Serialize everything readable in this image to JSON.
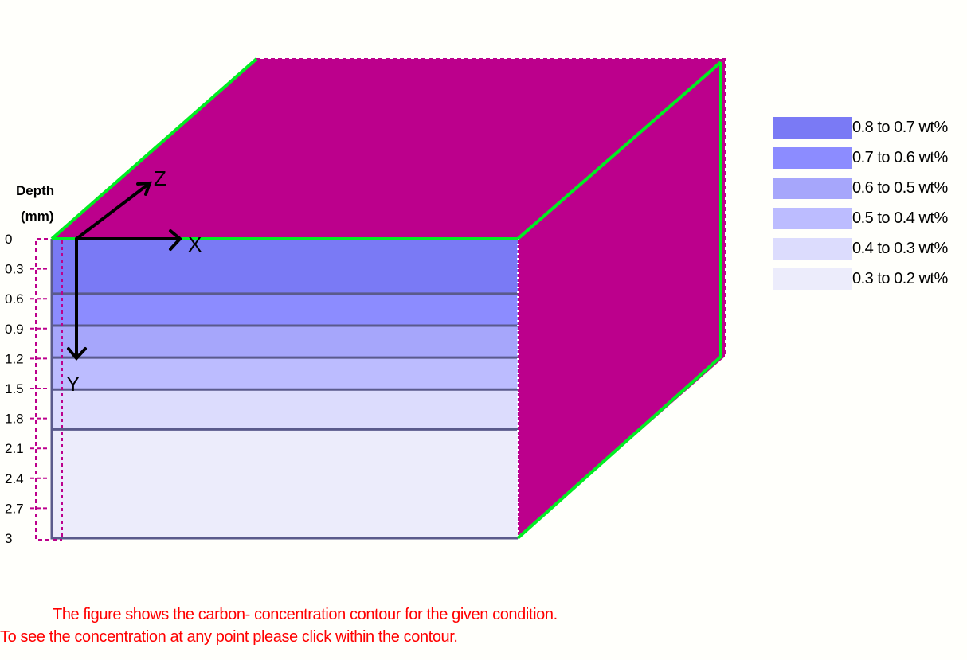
{
  "depth_axis": {
    "title_line1": "Depth",
    "title_line2": "(mm)",
    "ticks": [
      "0",
      "0.3",
      "0.6",
      "0.9",
      "1.2",
      "1.5",
      "1.8",
      "2.1",
      "2.4",
      "2.7",
      "3"
    ],
    "range": [
      0,
      3
    ]
  },
  "axes": {
    "x": "X",
    "y": "Y",
    "z": "Z"
  },
  "colors": {
    "block": "#bc008c",
    "edge": "#00ee22",
    "layer_line": "#5a5a8c",
    "guide": "#bc008c"
  },
  "layers": [
    {
      "label": "0.8 to 0.7 wt%",
      "from": 0.0,
      "to": 0.55,
      "color": "#7a7af5"
    },
    {
      "label": "0.7 to 0.6 wt%",
      "from": 0.55,
      "to": 0.87,
      "color": "#8c8cff"
    },
    {
      "label": "0.6 to 0.5 wt%",
      "from": 0.87,
      "to": 1.19,
      "color": "#a6a6fb"
    },
    {
      "label": "0.5 to 0.4 wt%",
      "from": 1.19,
      "to": 1.51,
      "color": "#bcbcff"
    },
    {
      "label": "0.4 to 0.3 wt%",
      "from": 1.51,
      "to": 1.91,
      "color": "#dcdcfd"
    },
    {
      "label": "0.3 to 0.2 wt%",
      "from": 1.91,
      "to": 3.0,
      "color": "#ececfb"
    }
  ],
  "caption": {
    "line1": "The figure shows the carbon- concentration contour for the given condition.",
    "line2": "To see the concentration at any point please click within the contour."
  }
}
